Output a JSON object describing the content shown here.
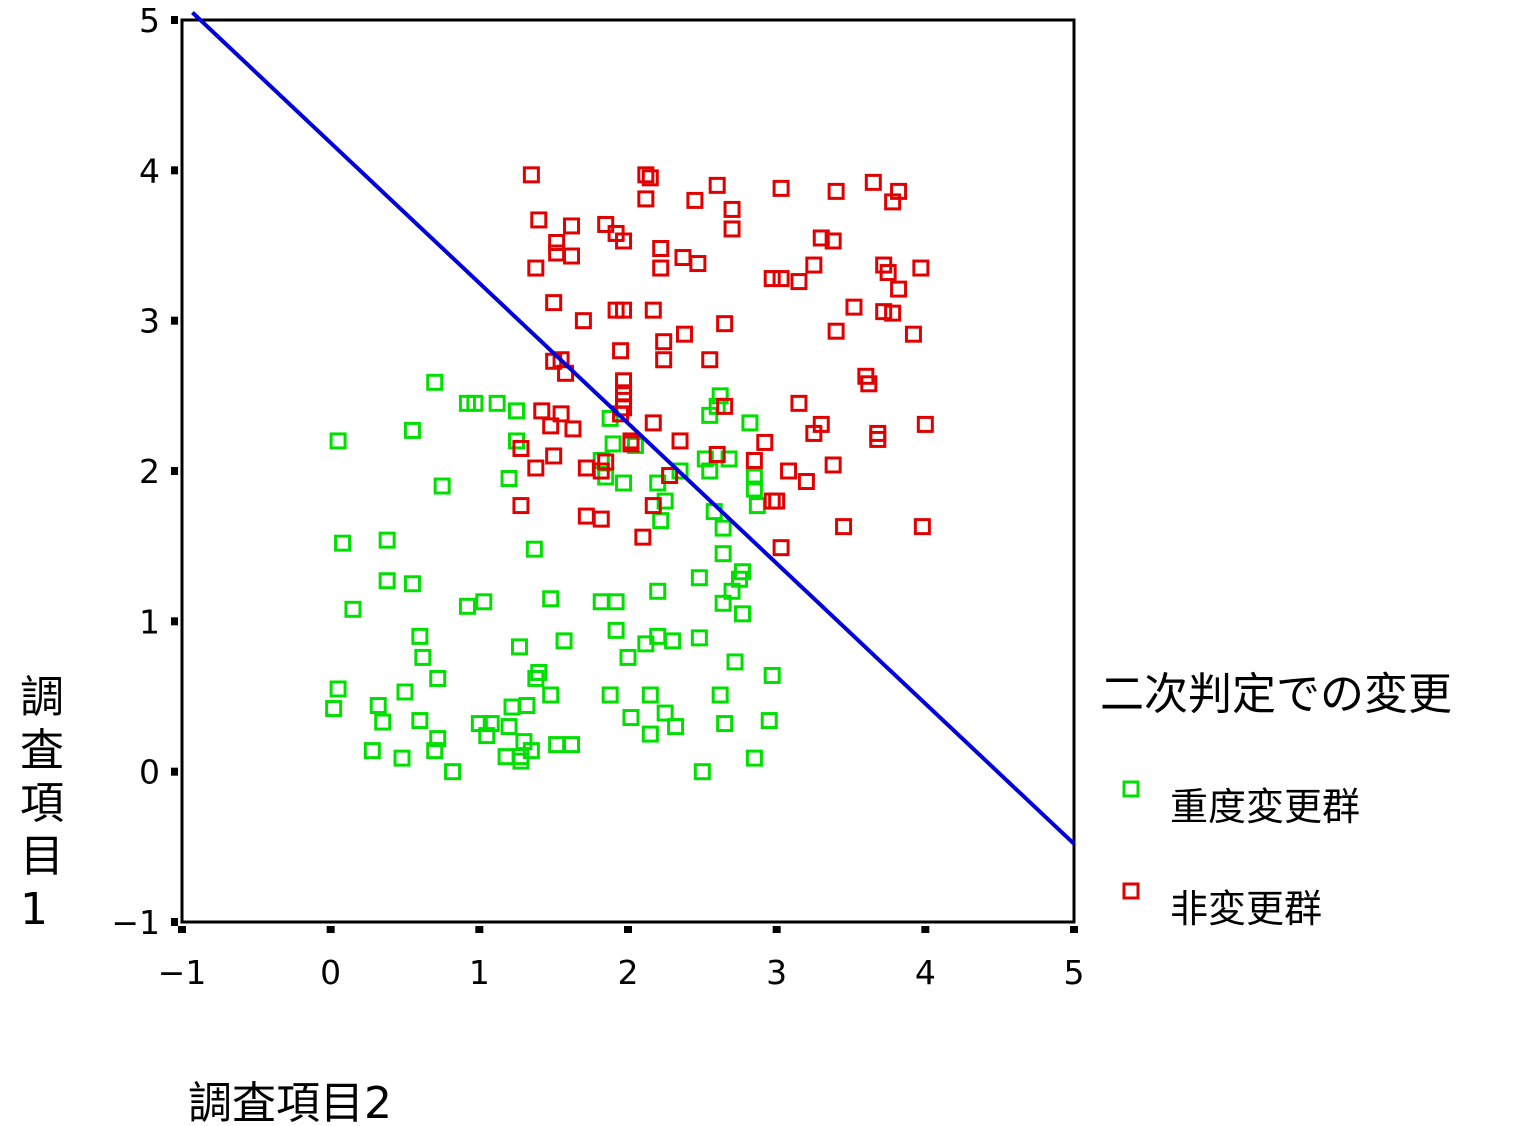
{
  "chart_data": {
    "type": "scatter",
    "title": "",
    "xlabel": "調査項目2",
    "ylabel": "調査項目1",
    "xlim": [
      -1,
      5
    ],
    "ylim": [
      -1,
      5
    ],
    "xticks": [
      "−1",
      "0",
      "1",
      "2",
      "3",
      "4",
      "5"
    ],
    "yticks": [
      "5",
      "4",
      "3",
      "2",
      "1",
      "0",
      "−1"
    ],
    "grid": false,
    "legend": {
      "title": "二次判定での変更",
      "placement": "right",
      "entries": [
        "重度変更群",
        "非変更群"
      ]
    },
    "marker": "hollow-square",
    "series": [
      {
        "name": "重度変更群",
        "color": "#00e000",
        "points": [
          [
            0.02,
            0.42
          ],
          [
            0.05,
            0.55
          ],
          [
            0.08,
            1.52
          ],
          [
            0.15,
            1.08
          ],
          [
            0.05,
            2.2
          ],
          [
            0.28,
            0.14
          ],
          [
            0.32,
            0.44
          ],
          [
            0.35,
            0.33
          ],
          [
            0.38,
            1.27
          ],
          [
            0.38,
            1.54
          ],
          [
            0.48,
            0.09
          ],
          [
            0.5,
            0.53
          ],
          [
            0.55,
            1.25
          ],
          [
            0.55,
            2.27
          ],
          [
            0.6,
            0.34
          ],
          [
            0.6,
            0.9
          ],
          [
            0.62,
            0.76
          ],
          [
            0.7,
            0.14
          ],
          [
            0.72,
            0.62
          ],
          [
            0.72,
            0.22
          ],
          [
            0.7,
            2.59
          ],
          [
            0.75,
            1.9
          ],
          [
            0.82,
            0.0
          ],
          [
            0.92,
            2.45
          ],
          [
            0.92,
            1.1
          ],
          [
            0.97,
            2.45
          ],
          [
            1.0,
            0.32
          ],
          [
            1.03,
            1.13
          ],
          [
            1.05,
            0.24
          ],
          [
            1.08,
            0.32
          ],
          [
            1.12,
            2.45
          ],
          [
            1.18,
            0.1
          ],
          [
            1.2,
            0.3
          ],
          [
            1.22,
            0.43
          ],
          [
            1.2,
            1.95
          ],
          [
            1.25,
            2.4
          ],
          [
            1.25,
            2.2
          ],
          [
            1.27,
            0.83
          ],
          [
            1.28,
            0.1
          ],
          [
            1.28,
            0.07
          ],
          [
            1.3,
            0.2
          ],
          [
            1.32,
            0.44
          ],
          [
            1.35,
            0.14
          ],
          [
            1.37,
            1.48
          ],
          [
            1.38,
            0.62
          ],
          [
            1.4,
            0.66
          ],
          [
            1.48,
            0.51
          ],
          [
            1.48,
            1.15
          ],
          [
            1.52,
            0.18
          ],
          [
            1.57,
            0.87
          ],
          [
            1.62,
            0.18
          ],
          [
            1.82,
            1.13
          ],
          [
            1.82,
            2.07
          ],
          [
            1.85,
            1.96
          ],
          [
            1.88,
            2.35
          ],
          [
            1.88,
            0.51
          ],
          [
            1.9,
            2.18
          ],
          [
            1.92,
            1.13
          ],
          [
            1.92,
            0.94
          ],
          [
            1.97,
            1.92
          ],
          [
            2.0,
            0.76
          ],
          [
            2.02,
            0.36
          ],
          [
            2.05,
            2.17
          ],
          [
            2.12,
            0.85
          ],
          [
            2.15,
            0.51
          ],
          [
            2.15,
            0.25
          ],
          [
            2.2,
            0.9
          ],
          [
            2.2,
            1.2
          ],
          [
            2.2,
            1.92
          ],
          [
            2.22,
            1.67
          ],
          [
            2.25,
            1.8
          ],
          [
            2.25,
            0.39
          ],
          [
            2.3,
            0.87
          ],
          [
            2.32,
            0.3
          ],
          [
            2.35,
            2.0
          ],
          [
            2.48,
            0.89
          ],
          [
            2.48,
            1.29
          ],
          [
            2.5,
            0.0
          ],
          [
            2.52,
            2.08
          ],
          [
            2.55,
            2.37
          ],
          [
            2.55,
            2.0
          ],
          [
            2.58,
            1.73
          ],
          [
            2.6,
            2.43
          ],
          [
            2.62,
            2.5
          ],
          [
            2.62,
            0.51
          ],
          [
            2.64,
            1.12
          ],
          [
            2.64,
            1.45
          ],
          [
            2.64,
            1.62
          ],
          [
            2.65,
            0.32
          ],
          [
            2.68,
            2.08
          ],
          [
            2.7,
            1.2
          ],
          [
            2.72,
            0.73
          ],
          [
            2.75,
            1.28
          ],
          [
            2.77,
            1.33
          ],
          [
            2.77,
            1.05
          ],
          [
            2.82,
            2.32
          ],
          [
            2.85,
            1.96
          ],
          [
            2.85,
            1.88
          ],
          [
            2.85,
            0.09
          ],
          [
            2.87,
            1.77
          ],
          [
            2.95,
            0.34
          ],
          [
            2.97,
            0.64
          ]
        ]
      },
      {
        "name": "非変更群",
        "color": "#e00000",
        "points": [
          [
            1.35,
            3.97
          ],
          [
            1.4,
            3.67
          ],
          [
            1.38,
            3.35
          ],
          [
            1.52,
            3.52
          ],
          [
            1.52,
            3.45
          ],
          [
            1.62,
            3.63
          ],
          [
            1.62,
            3.43
          ],
          [
            1.5,
            3.12
          ],
          [
            1.7,
            3.0
          ],
          [
            1.85,
            3.64
          ],
          [
            1.92,
            3.58
          ],
          [
            1.97,
            3.53
          ],
          [
            1.92,
            3.07
          ],
          [
            1.97,
            3.07
          ],
          [
            1.95,
            2.8
          ],
          [
            1.5,
            2.73
          ],
          [
            1.55,
            2.74
          ],
          [
            1.58,
            2.65
          ],
          [
            1.97,
            2.6
          ],
          [
            1.97,
            2.52
          ],
          [
            1.97,
            2.47
          ],
          [
            1.97,
            2.42
          ],
          [
            1.95,
            2.38
          ],
          [
            1.42,
            2.4
          ],
          [
            1.48,
            2.3
          ],
          [
            1.55,
            2.38
          ],
          [
            1.63,
            2.28
          ],
          [
            1.28,
            2.15
          ],
          [
            1.5,
            2.1
          ],
          [
            1.38,
            2.02
          ],
          [
            1.72,
            2.02
          ],
          [
            1.82,
            2.0
          ],
          [
            1.85,
            2.06
          ],
          [
            1.72,
            1.7
          ],
          [
            1.82,
            1.68
          ],
          [
            1.28,
            1.77
          ],
          [
            2.02,
            2.2
          ],
          [
            2.02,
            2.18
          ],
          [
            2.12,
            3.97
          ],
          [
            2.15,
            3.95
          ],
          [
            2.12,
            3.81
          ],
          [
            2.22,
            3.48
          ],
          [
            2.22,
            3.35
          ],
          [
            2.17,
            3.07
          ],
          [
            2.24,
            2.86
          ],
          [
            2.24,
            2.74
          ],
          [
            2.17,
            2.32
          ],
          [
            2.37,
            3.42
          ],
          [
            2.47,
            3.38
          ],
          [
            2.45,
            3.8
          ],
          [
            2.6,
            3.9
          ],
          [
            2.7,
            3.74
          ],
          [
            2.7,
            3.61
          ],
          [
            2.65,
            2.98
          ],
          [
            2.38,
            2.91
          ],
          [
            2.55,
            2.74
          ],
          [
            2.65,
            2.43
          ],
          [
            2.35,
            2.2
          ],
          [
            2.28,
            1.97
          ],
          [
            2.17,
            1.77
          ],
          [
            2.1,
            1.56
          ],
          [
            2.6,
            2.11
          ],
          [
            2.85,
            2.07
          ],
          [
            2.92,
            2.19
          ],
          [
            2.97,
            1.8
          ],
          [
            3.0,
            1.8
          ],
          [
            3.03,
            1.49
          ],
          [
            3.03,
            3.88
          ],
          [
            2.97,
            3.28
          ],
          [
            3.03,
            3.28
          ],
          [
            3.15,
            3.26
          ],
          [
            3.25,
            3.37
          ],
          [
            3.3,
            3.55
          ],
          [
            3.38,
            3.53
          ],
          [
            3.4,
            3.86
          ],
          [
            3.15,
            2.45
          ],
          [
            3.25,
            2.25
          ],
          [
            3.3,
            2.31
          ],
          [
            3.08,
            2.0
          ],
          [
            3.2,
            1.93
          ],
          [
            3.38,
            2.04
          ],
          [
            3.4,
            2.93
          ],
          [
            3.45,
            1.63
          ],
          [
            3.52,
            3.09
          ],
          [
            3.6,
            2.63
          ],
          [
            3.62,
            2.58
          ],
          [
            3.65,
            3.92
          ],
          [
            3.68,
            2.25
          ],
          [
            3.68,
            2.21
          ],
          [
            3.72,
            3.37
          ],
          [
            3.75,
            3.32
          ],
          [
            3.72,
            3.06
          ],
          [
            3.78,
            3.05
          ],
          [
            3.78,
            3.79
          ],
          [
            3.82,
            3.86
          ],
          [
            3.82,
            3.21
          ],
          [
            3.92,
            2.91
          ],
          [
            3.97,
            3.35
          ],
          [
            3.98,
            1.63
          ],
          [
            4.0,
            2.31
          ]
        ]
      }
    ],
    "reference_line": {
      "color": "#0000dd",
      "from": [
        -0.93,
        5.05
      ],
      "to": [
        5.0,
        -0.48
      ]
    }
  }
}
